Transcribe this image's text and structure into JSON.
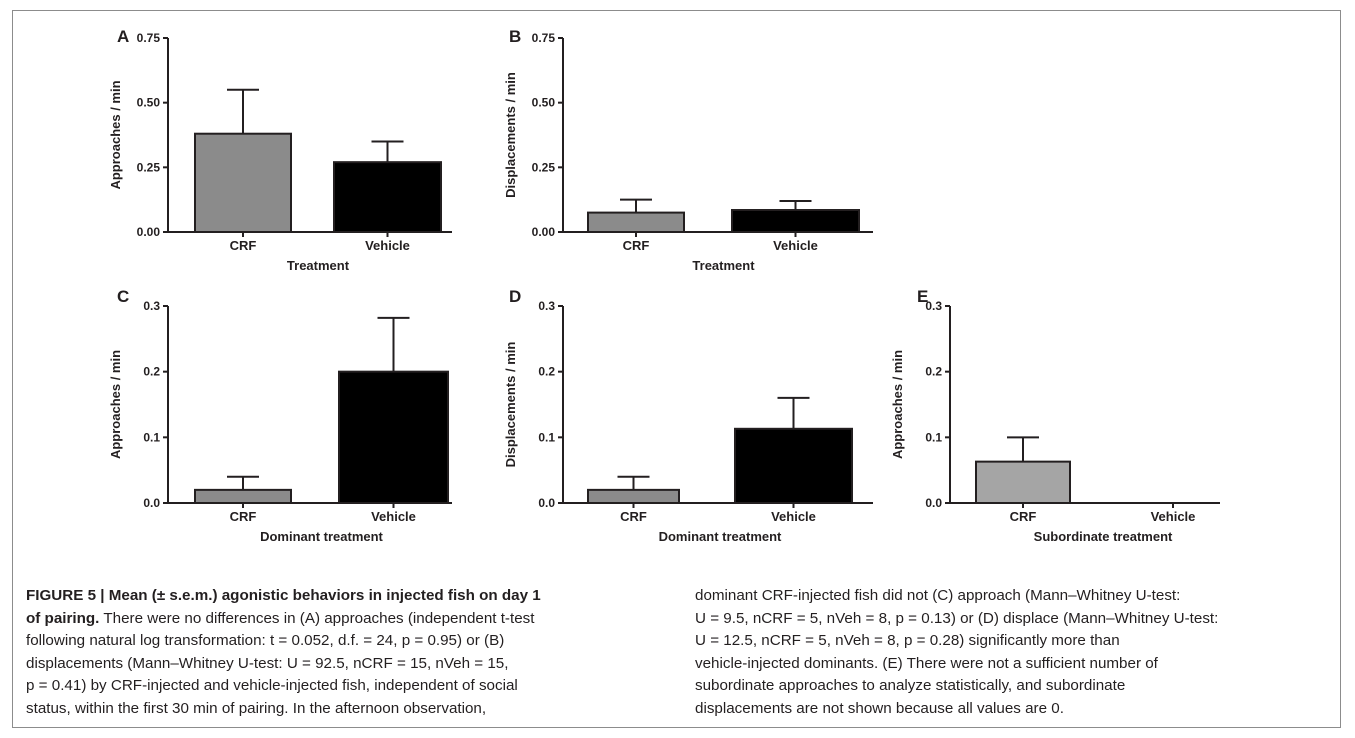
{
  "colors": {
    "crf": "#8b8b8b",
    "vehicle": "#000000",
    "crf_light": "#a5a5a5",
    "frame": "#8c8c8c"
  },
  "chart_data": [
    {
      "panel": "A",
      "type": "bar",
      "categories": [
        "CRF",
        "Vehicle"
      ],
      "values": [
        0.38,
        0.27
      ],
      "errors": [
        0.17,
        0.08
      ],
      "xlabel": "Treatment",
      "ylabel": "Approaches / min",
      "ylim": [
        0,
        0.75
      ],
      "yticks": [
        "0.00",
        "0.25",
        "0.50",
        "0.75"
      ]
    },
    {
      "panel": "B",
      "type": "bar",
      "categories": [
        "CRF",
        "Vehicle"
      ],
      "values": [
        0.075,
        0.085
      ],
      "errors": [
        0.05,
        0.035
      ],
      "xlabel": "Treatment",
      "ylabel": "Displacements / min",
      "ylim": [
        0,
        0.75
      ],
      "yticks": [
        "0.00",
        "0.25",
        "0.50",
        "0.75"
      ]
    },
    {
      "panel": "C",
      "type": "bar",
      "categories": [
        "CRF",
        "Vehicle"
      ],
      "values": [
        0.02,
        0.2
      ],
      "errors": [
        0.02,
        0.082
      ],
      "xlabel": "Dominant treatment",
      "ylabel": "Approaches / min",
      "ylim": [
        0,
        0.3
      ],
      "yticks": [
        "0.0",
        "0.1",
        "0.2",
        "0.3"
      ]
    },
    {
      "panel": "D",
      "type": "bar",
      "categories": [
        "CRF",
        "Vehicle"
      ],
      "values": [
        0.02,
        0.113
      ],
      "errors": [
        0.02,
        0.047
      ],
      "xlabel": "Dominant treatment",
      "ylabel": "Displacements / min",
      "ylim": [
        0,
        0.3
      ],
      "yticks": [
        "0.0",
        "0.1",
        "0.2",
        "0.3"
      ]
    },
    {
      "panel": "E",
      "type": "bar",
      "categories": [
        "CRF",
        "Vehicle"
      ],
      "values": [
        0.063,
        0
      ],
      "errors": [
        0.037,
        0
      ],
      "xlabel": "Subordinate treatment",
      "ylabel": "Approaches / min",
      "ylim": [
        0,
        0.3
      ],
      "yticks": [
        "0.0",
        "0.1",
        "0.2",
        "0.3"
      ]
    }
  ],
  "caption": {
    "heading": "FIGURE 5 | Mean (± s.e.m.) agonistic behaviors in injected fish on day 1 of pairing.",
    "left_lines": [
      "",
      "",
      "following natural log transformation: t = 0.052, d.f. = 24, p = 0.95) or (B)",
      "displacements (Mann–Whitney U-test: U = 92.5, nCRF = 15, nVeh = 15,",
      "p = 0.41) by CRF-injected and vehicle-injected fish, independent of social",
      "status, within the first 30 min of pairing. In the afternoon observation,"
    ],
    "heading_line1": "FIGURE 5 | Mean (± s.e.m.) agonistic behaviors in injected fish on day 1",
    "heading_line2": "of pairing.",
    "line2_rest": " There were no differences in (A) approaches (independent t-test",
    "right_lines": [
      "dominant CRF-injected fish did not (C) approach (Mann–Whitney U-test:",
      "U = 9.5, nCRF = 5, nVeh = 8, p = 0.13) or (D) displace (Mann–Whitney U-test:",
      "U = 12.5, nCRF = 5, nVeh = 8, p = 0.28) significantly more than",
      "vehicle-injected dominants. (E) There were not a sufficient number of",
      "subordinate approaches to analyze statistically, and subordinate",
      "displacements are not shown because all values are 0."
    ]
  }
}
